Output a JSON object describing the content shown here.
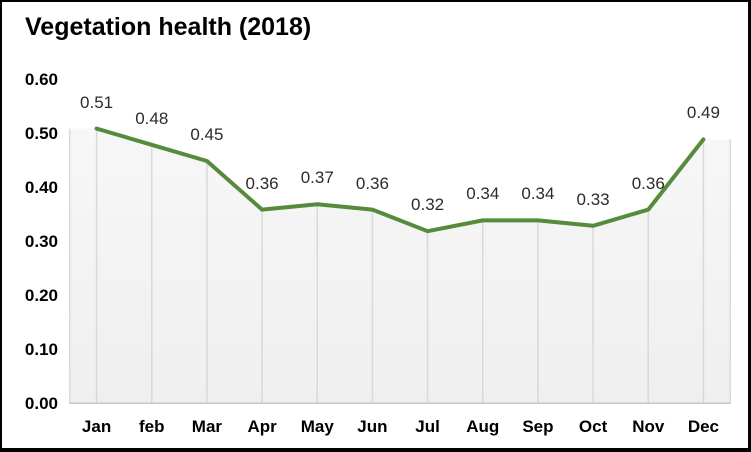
{
  "title": "Vegetation health (2018)",
  "chart_data": {
    "type": "line",
    "title": "Vegetation health (2018)",
    "categories": [
      "Jan",
      "feb",
      "Mar",
      "Apr",
      "May",
      "Jun",
      "Jul",
      "Aug",
      "Sep",
      "Oct",
      "Nov",
      "Dec"
    ],
    "series": [
      {
        "name": "Vegetation health",
        "values": [
          0.51,
          0.48,
          0.45,
          0.36,
          0.37,
          0.36,
          0.32,
          0.34,
          0.34,
          0.33,
          0.36,
          0.49
        ]
      }
    ],
    "data_labels": [
      "0.51",
      "0.48",
      "0.45",
      "0.36",
      "0.37",
      "0.36",
      "0.32",
      "0.34",
      "0.34",
      "0.33",
      "0.36",
      "0.49"
    ],
    "xlabel": "",
    "ylabel": "",
    "ylim": [
      0,
      0.6
    ],
    "yticks": [
      "0.00",
      "0.10",
      "0.20",
      "0.30",
      "0.40",
      "0.50",
      "0.60"
    ],
    "grid": "drop-lines-vertical-only",
    "legend": "none",
    "colors": {
      "line": "#568B3C",
      "area_fill_top": "#f7f7f7",
      "area_fill_bottom": "#efefef",
      "drop_line": "#d9d9d9",
      "axis_line": "#c8c8c8",
      "data_label_text": "#2b2b2b",
      "axis_text": "#000000",
      "frame_border": "#000000",
      "background": "#ffffff"
    }
  }
}
